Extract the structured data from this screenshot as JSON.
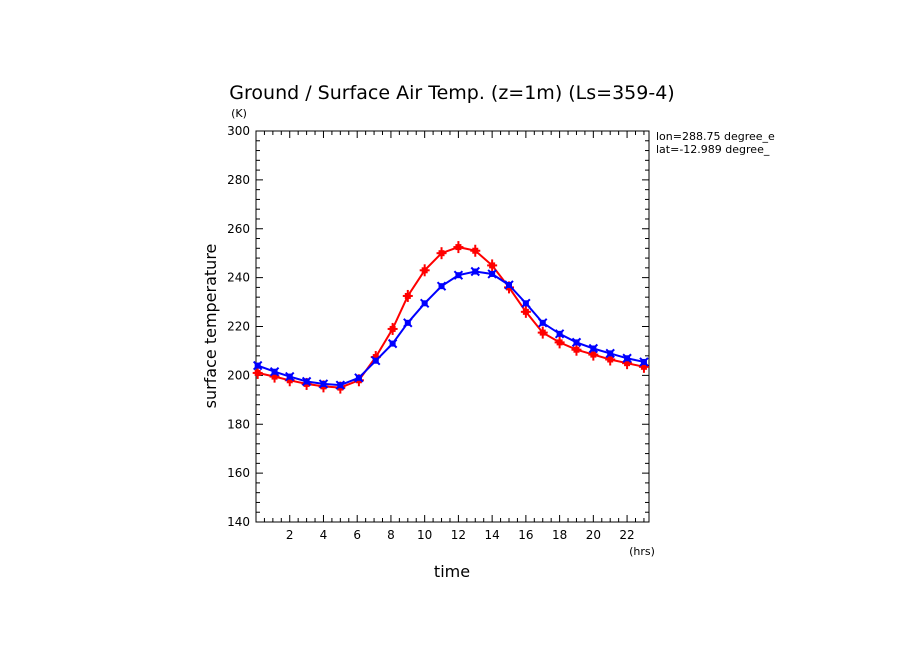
{
  "chart_data": {
    "type": "line",
    "title": "Ground / Surface Air Temp. (z=1m) (Ls=359-4)",
    "xlabel": "time",
    "ylabel": "surface temperature",
    "x_unit": "(hrs)",
    "y_unit": "(K)",
    "annotations": [
      "lon=288.75 degree_e",
      "lat=-12.989 degree_"
    ],
    "xlim": [
      0,
      23.3
    ],
    "ylim": [
      140,
      300
    ],
    "xticks": [
      2,
      4,
      6,
      8,
      10,
      12,
      14,
      16,
      18,
      20,
      22
    ],
    "yticks": [
      140,
      160,
      180,
      200,
      220,
      240,
      260,
      280,
      300
    ],
    "x": [
      0.1,
      1.1,
      2.0,
      3.0,
      4.0,
      5.0,
      6.1,
      7.1,
      8.1,
      9.0,
      10.0,
      11.0,
      12.0,
      13.0,
      14.0,
      15.0,
      16.0,
      17.0,
      18.0,
      19.0,
      20.0,
      21.0,
      22.0,
      23.0
    ],
    "series": [
      {
        "color": "#ff0000",
        "marker": "plus",
        "values": [
          201,
          199.5,
          198,
          196.5,
          195.5,
          195,
          198,
          207.5,
          219,
          232.5,
          243,
          250,
          252.5,
          251,
          245,
          236,
          226,
          217.5,
          213.5,
          210.5,
          208.5,
          206.5,
          205,
          203.5
        ]
      },
      {
        "color": "#0000ff",
        "marker": "x",
        "values": [
          204,
          201.5,
          199.5,
          197.5,
          196.5,
          196,
          199,
          206,
          213,
          221.5,
          229.5,
          236.5,
          241,
          242.5,
          241.5,
          237,
          229.5,
          221.5,
          217,
          213.5,
          211,
          209,
          207,
          205.5
        ]
      }
    ],
    "grid": false,
    "legend": "none"
  }
}
